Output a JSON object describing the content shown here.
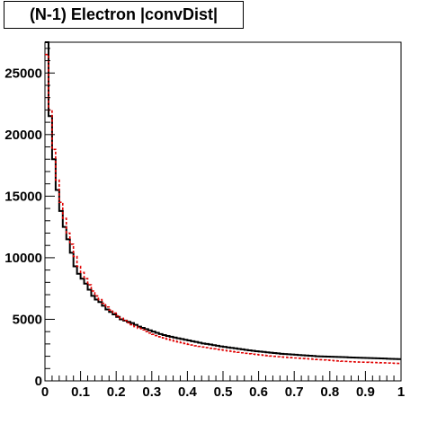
{
  "chart_data": {
    "type": "histogram",
    "title": "(N-1) Electron |convDist|",
    "xlabel": "",
    "ylabel": "",
    "xlim": [
      0,
      1
    ],
    "ylim": [
      0,
      27500
    ],
    "x_ticks": [
      "0",
      "0.1",
      "0.2",
      "0.3",
      "0.4",
      "0.5",
      "0.6",
      "0.7",
      "0.8",
      "0.9",
      "1"
    ],
    "y_ticks": [
      "0",
      "5000",
      "10000",
      "15000",
      "20000",
      "25000"
    ],
    "grid": false,
    "bin_width": 0.01,
    "series": [
      {
        "style": "solid",
        "color": "#000000",
        "values": [
          27500,
          21500,
          18000,
          15500,
          13800,
          12500,
          11500,
          10400,
          9300,
          8700,
          8300,
          7900,
          7400,
          6900,
          6600,
          6400,
          6100,
          5800,
          5600,
          5400,
          5200,
          5000,
          4900,
          4800,
          4700,
          4550,
          4400,
          4300,
          4200,
          4100,
          4000,
          3900,
          3800,
          3720,
          3650,
          3580,
          3520,
          3460,
          3400,
          3340,
          3280,
          3220,
          3160,
          3100,
          3040,
          3000,
          2950,
          2900,
          2850,
          2800,
          2760,
          2720,
          2680,
          2640,
          2600,
          2560,
          2520,
          2480,
          2440,
          2410,
          2380,
          2350,
          2320,
          2290,
          2260,
          2230,
          2200,
          2180,
          2160,
          2140,
          2120,
          2100,
          2080,
          2060,
          2040,
          2020,
          2000,
          1990,
          1980,
          1970,
          1960,
          1950,
          1940,
          1930,
          1920,
          1910,
          1900,
          1890,
          1880,
          1870,
          1860,
          1850,
          1840,
          1830,
          1820,
          1810,
          1800,
          1790,
          1780,
          1770
        ]
      },
      {
        "style": "dashed",
        "color": "#e00000",
        "values": [
          26500,
          22000,
          18800,
          16300,
          14500,
          13200,
          12000,
          11100,
          10100,
          9300,
          8800,
          8300,
          7800,
          7300,
          6900,
          6600,
          6300,
          6000,
          5750,
          5500,
          5280,
          5080,
          4900,
          4720,
          4560,
          4410,
          4270,
          4140,
          4010,
          3890,
          3780,
          3680,
          3580,
          3490,
          3400,
          3320,
          3240,
          3170,
          3100,
          3030,
          2970,
          2910,
          2850,
          2800,
          2750,
          2700,
          2650,
          2600,
          2560,
          2520,
          2480,
          2440,
          2400,
          2360,
          2320,
          2280,
          2240,
          2200,
          2170,
          2140,
          2110,
          2080,
          2050,
          2020,
          1990,
          1960,
          1940,
          1920,
          1900,
          1880,
          1860,
          1840,
          1820,
          1800,
          1780,
          1760,
          1740,
          1720,
          1700,
          1680,
          1660,
          1640,
          1620,
          1600,
          1580,
          1560,
          1550,
          1540,
          1530,
          1520,
          1510,
          1500,
          1490,
          1480,
          1470,
          1460,
          1450,
          1440,
          1430,
          1420
        ]
      }
    ]
  }
}
